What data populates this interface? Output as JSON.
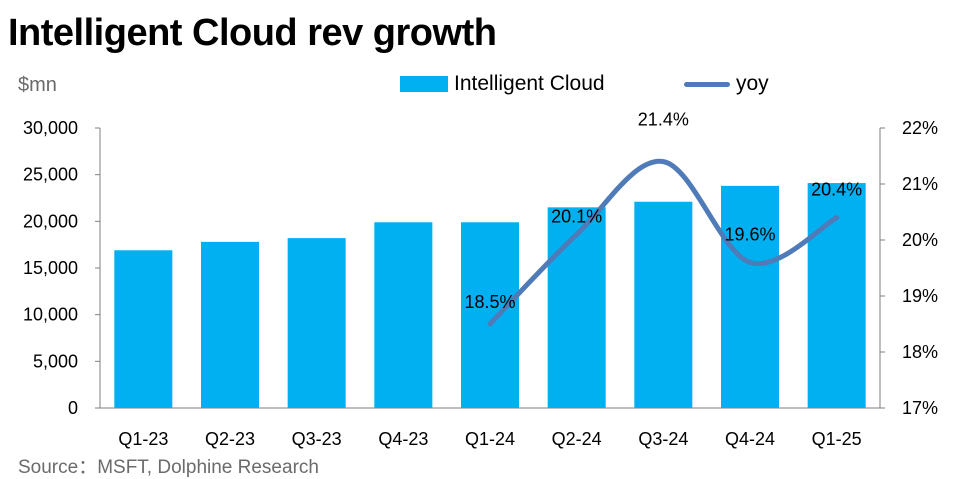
{
  "header": {
    "title": "Intelligent Cloud rev growth"
  },
  "footer": {
    "source": "Source：MSFT, Dolphine Research"
  },
  "axes": {
    "left_unit": "$mn"
  },
  "colors": {
    "bar": "#00B0F0",
    "line": "#4F7BB8"
  },
  "chart_data": {
    "type": "bar",
    "categories": [
      "Q1-23",
      "Q2-23",
      "Q3-23",
      "Q4-23",
      "Q1-24",
      "Q2-24",
      "Q3-24",
      "Q4-24",
      "Q1-25"
    ],
    "series": [
      {
        "name": "Intelligent Cloud",
        "type": "bar",
        "axis": "left",
        "values": [
          16900,
          17800,
          18200,
          19900,
          19900,
          21500,
          22100,
          23800,
          24100
        ]
      },
      {
        "name": "yoy",
        "type": "line",
        "axis": "right",
        "values": [
          null,
          null,
          null,
          null,
          18.5,
          20.1,
          21.4,
          19.6,
          20.4
        ],
        "labels": [
          "",
          "",
          "",
          "",
          "18.5%",
          "20.1%",
          "21.4%",
          "19.6%",
          "20.4%"
        ]
      }
    ],
    "ylim": [
      0,
      30000
    ],
    "y_ticks": [
      "0",
      "5,000",
      "10,000",
      "15,000",
      "20,000",
      "25,000",
      "30,000"
    ],
    "y2lim": [
      17,
      22
    ],
    "y2_ticks": [
      "17%",
      "18%",
      "19%",
      "20%",
      "21%",
      "22%"
    ],
    "legend": "top",
    "grid": false
  }
}
